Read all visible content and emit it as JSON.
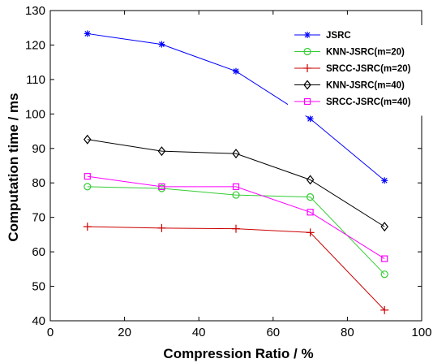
{
  "chart_data": {
    "type": "line",
    "title": "",
    "xlabel": "Compression Ratio / %",
    "ylabel": "Computation time / ms",
    "xlim": [
      0,
      100
    ],
    "ylim": [
      40,
      130
    ],
    "xticks": [
      0,
      20,
      40,
      60,
      80,
      100
    ],
    "yticks": [
      40,
      50,
      60,
      70,
      80,
      90,
      100,
      110,
      120,
      130
    ],
    "grid": false,
    "legend_position": "top-right",
    "x": [
      10,
      30,
      50,
      70,
      90
    ],
    "series": [
      {
        "name": "JSRC",
        "values": [
          123.3,
          120.2,
          112.4,
          98.6,
          80.7
        ],
        "color": "#0000ff",
        "marker": "asterisk"
      },
      {
        "name": "KNN-JSRC(m=20)",
        "values": [
          78.9,
          78.4,
          76.5,
          75.9,
          53.5
        ],
        "color": "#33cc33",
        "marker": "circle"
      },
      {
        "name": "SRCC-JSRC(m=20)",
        "values": [
          67.3,
          66.9,
          66.7,
          65.6,
          43.1
        ],
        "color": "#cc0000",
        "marker": "plus"
      },
      {
        "name": "KNN-JSRC(m=40)",
        "values": [
          92.6,
          89.2,
          88.5,
          80.9,
          67.3
        ],
        "color": "#000000",
        "marker": "diamond"
      },
      {
        "name": "SRCC-JSRC(m=40)",
        "values": [
          81.9,
          78.9,
          78.9,
          71.5,
          58.0
        ],
        "color": "#ff00ff",
        "marker": "square"
      }
    ]
  }
}
